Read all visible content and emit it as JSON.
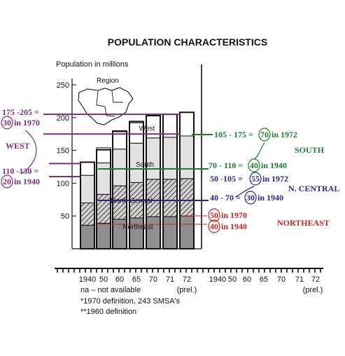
{
  "chart_data": {
    "type": "bar",
    "title": "POPULATION CHARACTERISTICS",
    "ylabel": "Population in millions",
    "ylim": [
      0,
      250
    ],
    "yticks": [
      "250",
      "200",
      "150",
      "100",
      "50"
    ],
    "ytick_values": [
      250,
      200,
      150,
      100,
      50
    ],
    "categories": [
      "1940",
      "50",
      "60",
      "65",
      "70",
      "71",
      "72"
    ],
    "x_note": "(prel.)",
    "right_categories": [
      "1940",
      "50",
      "60",
      "65",
      "70",
      "71",
      "72"
    ],
    "right_note": "(prel.)",
    "series": [
      {
        "name": "Northeast",
        "values": [
          36,
          39,
          45,
          47,
          49,
          49,
          50
        ]
      },
      {
        "name": "North Central",
        "values": [
          34,
          44,
          51,
          54,
          57,
          57,
          57
        ]
      },
      {
        "name": "South",
        "values": [
          42,
          48,
          56,
          60,
          63,
          64,
          65
        ]
      },
      {
        "name": "West",
        "values": [
          20,
          23,
          28,
          31,
          35,
          35,
          36
        ]
      }
    ],
    "totals": [
      132,
      151,
      179,
      194,
      203,
      205,
      208
    ],
    "region_label": "Region",
    "footnotes": [
      "na – not available",
      "*1970 definition, 243 SMSA's",
      "**1960 definition"
    ],
    "annotations": {
      "west_range_1970": {
        "prefix": "175 -205 =",
        "circled": "30",
        "suffix": "in 1970"
      },
      "west_label": "WEST",
      "west_range_1940": {
        "prefix": "110 -130 =",
        "circled": "20",
        "suffix": "in 1940"
      },
      "south_range_1972": {
        "prefix": "105 - 175 =",
        "circled": "70",
        "suffix": "in 1972"
      },
      "south_label": "SOUTH",
      "south_range_1940": {
        "prefix": "70 - 110 =",
        "circled": "40",
        "suffix": "in 1940"
      },
      "ncentral_range_1972": {
        "prefix": "50 -105 =",
        "circled": "55",
        "suffix": "in 1972"
      },
      "ncentral_label": "N. CENTRAL",
      "ncentral_range_1940": {
        "prefix": "40 - 70 =",
        "circled": "30",
        "suffix": "in 1940"
      },
      "northeast_1970": {
        "circled": "50",
        "suffix": "in 1970"
      },
      "northeast_1940": {
        "circled": "40",
        "suffix": "in 1940"
      },
      "northeast_label": "NORTHEAST"
    },
    "colors": {
      "west": "#7b2c82",
      "south": "#1e7d2f",
      "north_central": "#26268c",
      "northeast": "#cc2222",
      "ink": "#111111"
    }
  }
}
